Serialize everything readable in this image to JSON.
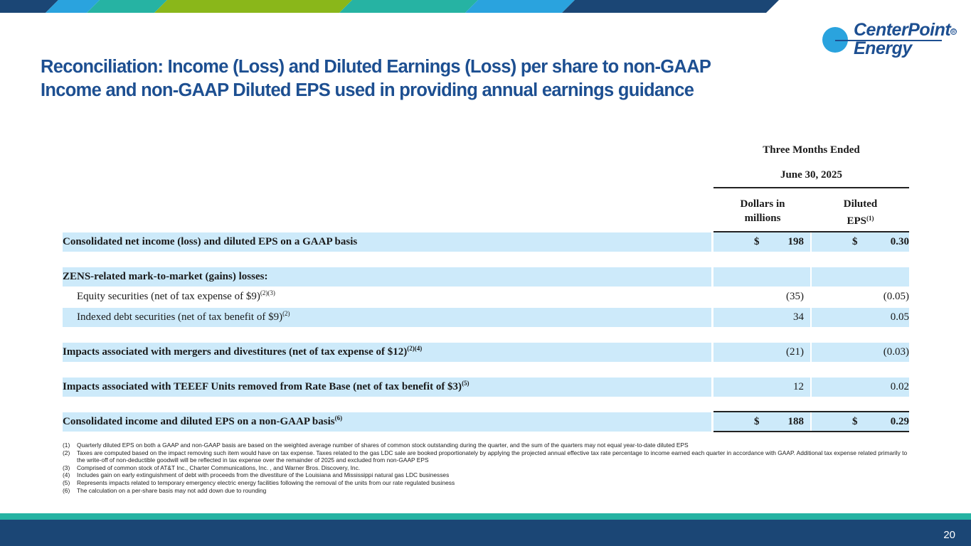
{
  "brand": {
    "logo_line1": "CenterPoint",
    "logo_line2": "Energy",
    "logo_mark": "®",
    "colors": {
      "navy": "#1d4f91",
      "light_blue": "#2aa3de",
      "teal": "#26b3a3",
      "green": "#8ab71a",
      "dark_band": "#1b4675",
      "row_shade": "#cdeafa"
    }
  },
  "title": {
    "line1": "Reconciliation: Income (Loss) and Diluted Earnings (Loss) per share to non-GAAP",
    "line2": "Income and non-GAAP Diluted EPS used in providing annual earnings guidance"
  },
  "table": {
    "period_line1": "Three Months Ended",
    "period_line2": "June 30, 2025",
    "col1_line1": "Dollars in",
    "col1_line2": "millions",
    "col2_line1": "Diluted",
    "col2_line2": "EPS",
    "col2_sup": "(1)",
    "rows": [
      {
        "label": "Consolidated net income (loss) and diluted EPS on a GAAP basis",
        "sup": "",
        "dollars": "198",
        "eps": "0.30",
        "dollar_sign": "$"
      },
      {
        "label": "ZENS-related mark-to-market (gains) losses:",
        "sup": "",
        "dollars": "",
        "eps": ""
      },
      {
        "label": "Equity securities (net of tax expense of $9)",
        "sup": "(2)(3)",
        "dollars": "(35)",
        "eps": "(0.05)"
      },
      {
        "label": "Indexed debt securities (net of tax benefit of $9)",
        "sup": "(2)",
        "dollars": "34",
        "eps": "0.05"
      },
      {
        "label": "Impacts associated with mergers and divestitures (net of tax expense of $12)",
        "sup": "(2)(4)",
        "dollars": "(21)",
        "eps": "(0.03)"
      },
      {
        "label": "Impacts associated with TEEEF Units removed from Rate Base (net of tax benefit of $3)",
        "sup": "(5)",
        "dollars": "12",
        "eps": "0.02"
      },
      {
        "label": "Consolidated income and diluted EPS on a non-GAAP basis",
        "sup": "(6)",
        "dollars": "188",
        "eps": "0.29",
        "dollar_sign": "$"
      }
    ]
  },
  "footnotes": [
    {
      "num": "(1)",
      "text": "Quarterly diluted EPS on both a GAAP and non-GAAP basis are based on the weighted average number of shares of common stock outstanding during the quarter, and the sum of the quarters may not equal year-to-date diluted EPS"
    },
    {
      "num": "(2)",
      "text": "Taxes are computed based on the impact removing such item would have on tax expense.  Taxes related to the gas LDC sale are booked proportionately by applying the projected annual effective tax rate percentage to income earned each quarter in accordance with GAAP.  Additional tax expense related primarily to the write-off of non-deductible goodwill will be reflected in tax expense over the remainder of 2025 and excluded from non-GAAP EPS"
    },
    {
      "num": "(3)",
      "text": "Comprised of common stock of AT&T Inc., Charter Communications, Inc. , and Warner Bros. Discovery, Inc."
    },
    {
      "num": "(4)",
      "text": "Includes gain on early extinguishment of debt with proceeds from the divestiture of the Louisiana and Mississippi natural gas LDC businesses"
    },
    {
      "num": "(5)",
      "text": "Represents impacts related to temporary emergency electric energy facilities following the removal of the units from our rate regulated business"
    },
    {
      "num": "(6)",
      "text": "The calculation on a per-share basis may not add down due to rounding"
    }
  ],
  "page_number": "20"
}
